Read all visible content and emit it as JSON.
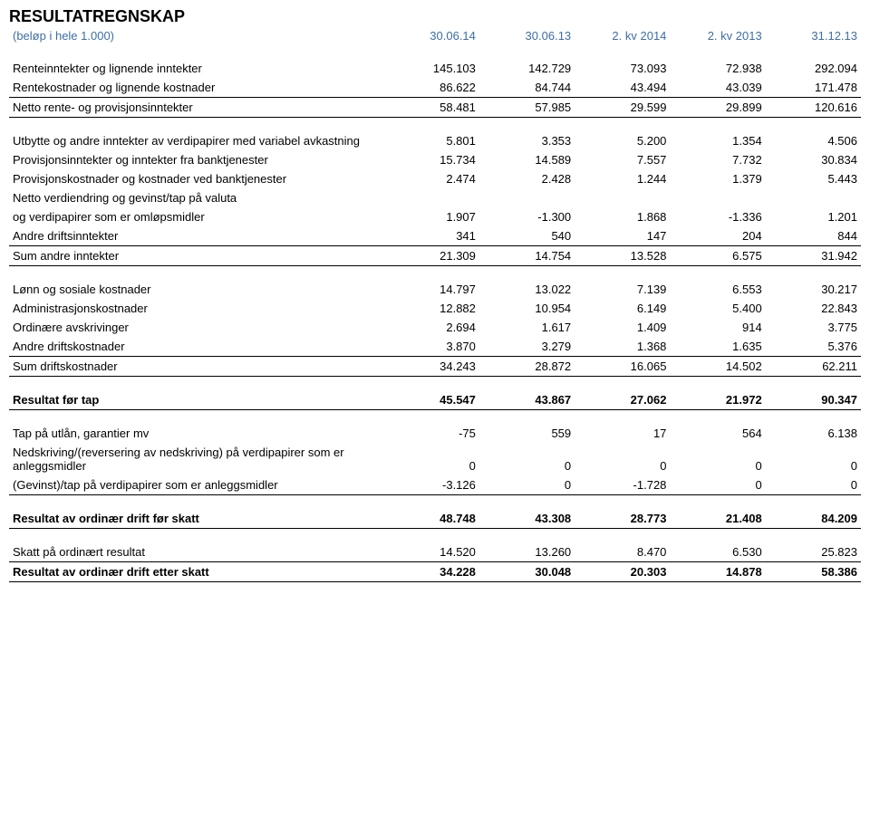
{
  "title": "RESULTATREGNSKAP",
  "subtitle": "(beløp i hele 1.000)",
  "columns": [
    "30.06.14",
    "30.06.13",
    "2. kv 2014",
    "2. kv 2013",
    "31.12.13"
  ],
  "rows": {
    "r1": {
      "label": "Renteinntekter og lignende inntekter",
      "v": [
        "145.103",
        "142.729",
        "73.093",
        "72.938",
        "292.094"
      ]
    },
    "r2": {
      "label": "Rentekostnader og lignende kostnader",
      "v": [
        "86.622",
        "84.744",
        "43.494",
        "43.039",
        "171.478"
      ]
    },
    "r3": {
      "label": "Netto rente- og provisjonsinntekter",
      "v": [
        "58.481",
        "57.985",
        "29.599",
        "29.899",
        "120.616"
      ]
    },
    "r4": {
      "label": "Utbytte og andre inntekter av verdipapirer med variabel avkastning",
      "v": [
        "5.801",
        "3.353",
        "5.200",
        "1.354",
        "4.506"
      ]
    },
    "r5": {
      "label": "Provisjonsinntekter og inntekter fra banktjenester",
      "v": [
        "15.734",
        "14.589",
        "7.557",
        "7.732",
        "30.834"
      ]
    },
    "r6": {
      "label": "Provisjonskostnader og kostnader ved banktjenester",
      "v": [
        "2.474",
        "2.428",
        "1.244",
        "1.379",
        "5.443"
      ]
    },
    "r7a": {
      "label": "Netto verdiendring og gevinst/tap på valuta"
    },
    "r7b": {
      "label": "og verdipapirer som er omløpsmidler",
      "v": [
        "1.907",
        "-1.300",
        "1.868",
        "-1.336",
        "1.201"
      ]
    },
    "r8": {
      "label": "Andre driftsinntekter",
      "v": [
        "341",
        "540",
        "147",
        "204",
        "844"
      ]
    },
    "r9": {
      "label": "Sum andre inntekter",
      "v": [
        "21.309",
        "14.754",
        "13.528",
        "6.575",
        "31.942"
      ]
    },
    "r10": {
      "label": "Lønn og sosiale kostnader",
      "v": [
        "14.797",
        "13.022",
        "7.139",
        "6.553",
        "30.217"
      ]
    },
    "r11": {
      "label": "Administrasjonskostnader",
      "v": [
        "12.882",
        "10.954",
        "6.149",
        "5.400",
        "22.843"
      ]
    },
    "r12": {
      "label": "Ordinære avskrivinger",
      "v": [
        "2.694",
        "1.617",
        "1.409",
        "914",
        "3.775"
      ]
    },
    "r13": {
      "label": "Andre driftskostnader",
      "v": [
        "3.870",
        "3.279",
        "1.368",
        "1.635",
        "5.376"
      ]
    },
    "r14": {
      "label": "Sum driftskostnader",
      "v": [
        "34.243",
        "28.872",
        "16.065",
        "14.502",
        "62.211"
      ]
    },
    "r15": {
      "label": "Resultat før tap",
      "v": [
        "45.547",
        "43.867",
        "27.062",
        "21.972",
        "90.347"
      ]
    },
    "r16": {
      "label": "Tap på utlån, garantier mv",
      "v": [
        "-75",
        "559",
        "17",
        "564",
        "6.138"
      ]
    },
    "r17": {
      "label": "Nedskriving/(reversering av nedskriving) på verdipapirer som er anleggsmidler",
      "v": [
        "0",
        "0",
        "0",
        "0",
        "0"
      ]
    },
    "r18": {
      "label": "(Gevinst)/tap på verdipapirer som er anleggsmidler",
      "v": [
        "-3.126",
        "0",
        "-1.728",
        "0",
        "0"
      ]
    },
    "r19": {
      "label": "Resultat av ordinær drift før skatt",
      "v": [
        "48.748",
        "43.308",
        "28.773",
        "21.408",
        "84.209"
      ]
    },
    "r20": {
      "label": "Skatt på ordinært resultat",
      "v": [
        "14.520",
        "13.260",
        "8.470",
        "6.530",
        "25.823"
      ]
    },
    "r21": {
      "label": "Resultat av ordinær drift etter skatt",
      "v": [
        "34.228",
        "30.048",
        "20.303",
        "14.878",
        "58.386"
      ]
    }
  }
}
